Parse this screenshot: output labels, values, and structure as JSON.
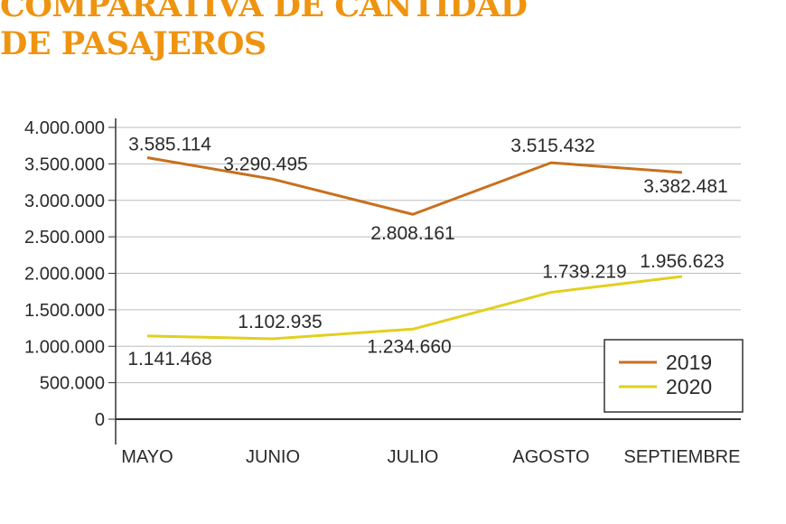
{
  "title_line1": "COMPARATIVA DE CANTIDAD",
  "title_line2": "DE PASAJEROS",
  "chart_data": {
    "type": "line",
    "title": "COMPARATIVA DE CANTIDAD DE PASAJEROS",
    "categories": [
      "MAYO",
      "JUNIO",
      "JULIO",
      "AGOSTO",
      "SEPTIEMBRE"
    ],
    "series": [
      {
        "name": "2019",
        "color": "#c8701e",
        "values": [
          3585114,
          3290495,
          2808161,
          3515432,
          3382481
        ],
        "labels": [
          "3.585.114",
          "3.290.495",
          "2.808.161",
          "3.515.432",
          "3.382.481"
        ]
      },
      {
        "name": "2020",
        "color": "#e2cf1e",
        "values": [
          1141468,
          1102935,
          1234660,
          1739219,
          1956623
        ],
        "labels": [
          "1.141.468",
          "1.102.935",
          "1.234.660",
          "1.739.219",
          "1.956.623"
        ]
      }
    ],
    "yticks": [
      0,
      500000,
      1000000,
      1500000,
      2000000,
      2500000,
      3000000,
      3500000,
      4000000
    ],
    "ytick_labels": [
      "0",
      "500.000",
      "1.000.000",
      "1.500.000",
      "2.000.000",
      "2.500.000",
      "3.000.000",
      "3.500.000",
      "4.000.000"
    ],
    "ylim": [
      0,
      4000000
    ],
    "xlabel": "",
    "ylabel": "",
    "grid": true,
    "legend": "bottom-right"
  }
}
